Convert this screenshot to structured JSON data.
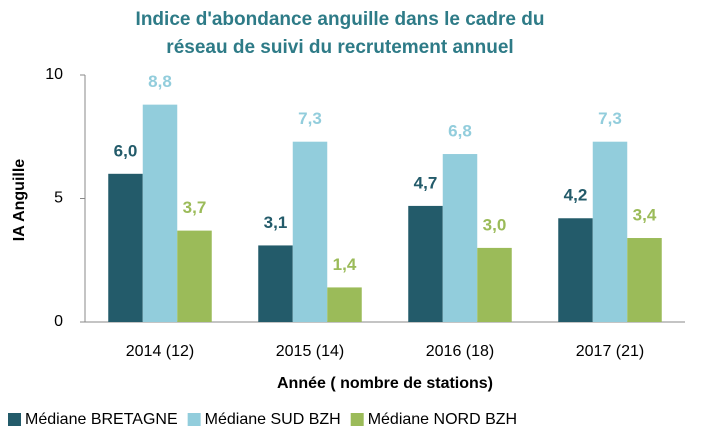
{
  "chart_data": {
    "type": "bar",
    "title": [
      "Indice d'abondance anguille dans le cadre du",
      "réseau de suivi du recrutement annuel"
    ],
    "x_label": "Année ( nombre de stations)",
    "y_label": "IA Anguille",
    "categories": [
      "2014 (12)",
      "2015 (14)",
      "2016 (18)",
      "2017 (21)"
    ],
    "series": [
      {
        "name": "Médiane BRETAGNE",
        "color": "#235b6a",
        "values": [
          6.0,
          3.1,
          4.7,
          4.2
        ],
        "value_labels": [
          "6,0",
          "3,1",
          "4,7",
          "4,2"
        ]
      },
      {
        "name": "Médiane SUD BZH",
        "color": "#92cddc",
        "values": [
          8.8,
          7.3,
          6.8,
          7.3
        ],
        "value_labels": [
          "8,8",
          "7,3",
          "6,8",
          "7,3"
        ]
      },
      {
        "name": "Médiane NORD BZH",
        "color": "#9bbb59",
        "values": [
          3.7,
          1.4,
          3.0,
          3.4
        ],
        "value_labels": [
          "3,7",
          "1,4",
          "3,0",
          "3,4"
        ]
      }
    ],
    "ylim": [
      0,
      10
    ],
    "yticks": [
      0,
      5,
      10
    ],
    "grid": false,
    "legend": "bottom"
  }
}
